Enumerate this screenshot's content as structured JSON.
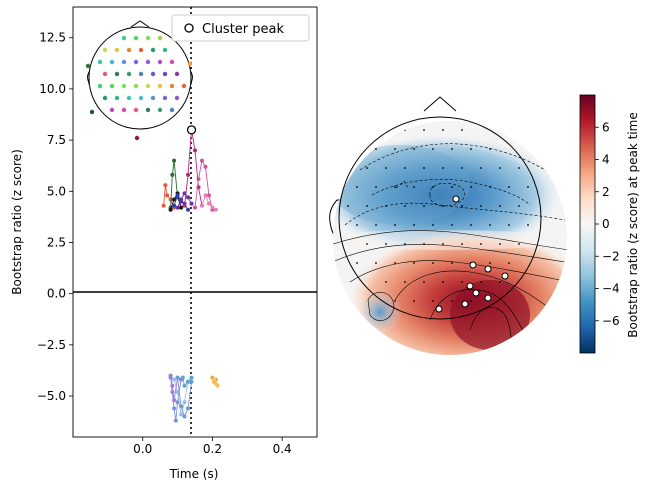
{
  "chart_data": [
    {
      "type": "line",
      "xlabel": "Time (s)",
      "ylabel": "Bootstrap ratio (z score)",
      "xlim": [
        -0.2,
        0.5
      ],
      "ylim": [
        -7.0,
        14.0
      ],
      "xticks": [
        0.0,
        0.2,
        0.4
      ],
      "xtick_labels": [
        "0.0",
        "0.2",
        "0.4"
      ],
      "yticks": [
        -5.0,
        -2.5,
        0.0,
        2.5,
        5.0,
        7.5,
        10.0,
        12.5
      ],
      "ytick_labels": [
        "−5.0",
        "−2.5",
        "0.0",
        "2.5",
        "5.0",
        "7.5",
        "10.0",
        "12.5"
      ],
      "zero_line": 0,
      "peak_time": 0.14,
      "legend": {
        "label": "Cluster peak",
        "position": "top-right"
      },
      "cluster_peak": {
        "x": 0.14,
        "y": 8.0
      },
      "positive_series": [
        {
          "color": "#e35a3c",
          "x": [
            0.06,
            0.065,
            0.07,
            0.08,
            0.09
          ],
          "y": [
            4.3,
            5.3,
            4.8,
            4.6,
            4.2
          ]
        },
        {
          "color": "#2a6b2a",
          "x": [
            0.08,
            0.085,
            0.09,
            0.1,
            0.11
          ],
          "y": [
            4.2,
            5.8,
            6.5,
            4.7,
            4.2
          ]
        },
        {
          "color": "#1a1a1a",
          "x": [
            0.08,
            0.09,
            0.1,
            0.11
          ],
          "y": [
            4.1,
            4.6,
            4.9,
            4.2
          ]
        },
        {
          "color": "#2f3bb0",
          "x": [
            0.09,
            0.1,
            0.11,
            0.12,
            0.13
          ],
          "y": [
            4.3,
            4.8,
            4.5,
            4.4,
            4.1
          ]
        },
        {
          "color": "#6f2aa8",
          "x": [
            0.1,
            0.11,
            0.12,
            0.13,
            0.14
          ],
          "y": [
            4.2,
            4.6,
            4.9,
            4.7,
            4.4
          ]
        },
        {
          "color": "#b9257e",
          "x": [
            0.12,
            0.13,
            0.14,
            0.15,
            0.16,
            0.17
          ],
          "y": [
            4.3,
            5.8,
            8.0,
            7.0,
            5.2,
            4.3
          ]
        },
        {
          "color": "#d0529c",
          "x": [
            0.15,
            0.16,
            0.17,
            0.18,
            0.19,
            0.2
          ],
          "y": [
            4.2,
            5.6,
            6.5,
            6.2,
            4.8,
            4.1
          ]
        },
        {
          "color": "#e67fb8",
          "x": [
            0.17,
            0.18,
            0.19,
            0.2,
            0.21
          ],
          "y": [
            4.3,
            4.8,
            4.4,
            4.2,
            4.1
          ]
        }
      ],
      "negative_series": [
        {
          "color": "#7b8fe0",
          "x": [
            0.08,
            0.085,
            0.09,
            0.095,
            0.1,
            0.11
          ],
          "y": [
            -4.1,
            -4.8,
            -5.6,
            -6.2,
            -5.3,
            -4.2
          ]
        },
        {
          "color": "#9db8e8",
          "x": [
            0.09,
            0.1,
            0.11,
            0.12,
            0.13
          ],
          "y": [
            -4.2,
            -4.8,
            -5.9,
            -5.3,
            -4.3
          ]
        },
        {
          "color": "#a579d6",
          "x": [
            0.08,
            0.085,
            0.09,
            0.1
          ],
          "y": [
            -4.0,
            -4.5,
            -5.2,
            -4.1
          ]
        },
        {
          "color": "#6a9ad0",
          "x": [
            0.1,
            0.11,
            0.12,
            0.13,
            0.14
          ],
          "y": [
            -4.1,
            -5.5,
            -6.0,
            -5.6,
            -4.3
          ]
        },
        {
          "color": "#5aa6c8",
          "x": [
            0.115,
            0.12,
            0.13,
            0.14
          ],
          "y": [
            -4.1,
            -4.5,
            -4.3,
            -4.1
          ]
        },
        {
          "color": "#f5a33a",
          "x": [
            0.2,
            0.205,
            0.21
          ],
          "y": [
            -4.1,
            -4.3,
            -4.2
          ]
        },
        {
          "color": "#f2c36a",
          "x": [
            0.205,
            0.21,
            0.215
          ],
          "y": [
            -4.2,
            -4.4,
            -4.5
          ]
        }
      ]
    },
    {
      "type": "heatmap",
      "colorbar_label": "Bootstrap ratio (z score) at peak time",
      "colorbar_ticks": [
        -6,
        -4,
        -2,
        0,
        2,
        4,
        6
      ],
      "colorbar_tick_labels": [
        "−6",
        "−4",
        "−2",
        "0",
        "2",
        "4",
        "6"
      ],
      "colorbar_range": [
        -8,
        8
      ],
      "colormap": [
        "#053061",
        "#2166ac",
        "#4393c3",
        "#92c5de",
        "#d1e5f0",
        "#f7f7f7",
        "#fddbc7",
        "#f4a582",
        "#d6604d",
        "#b2182b",
        "#67001f"
      ]
    }
  ]
}
